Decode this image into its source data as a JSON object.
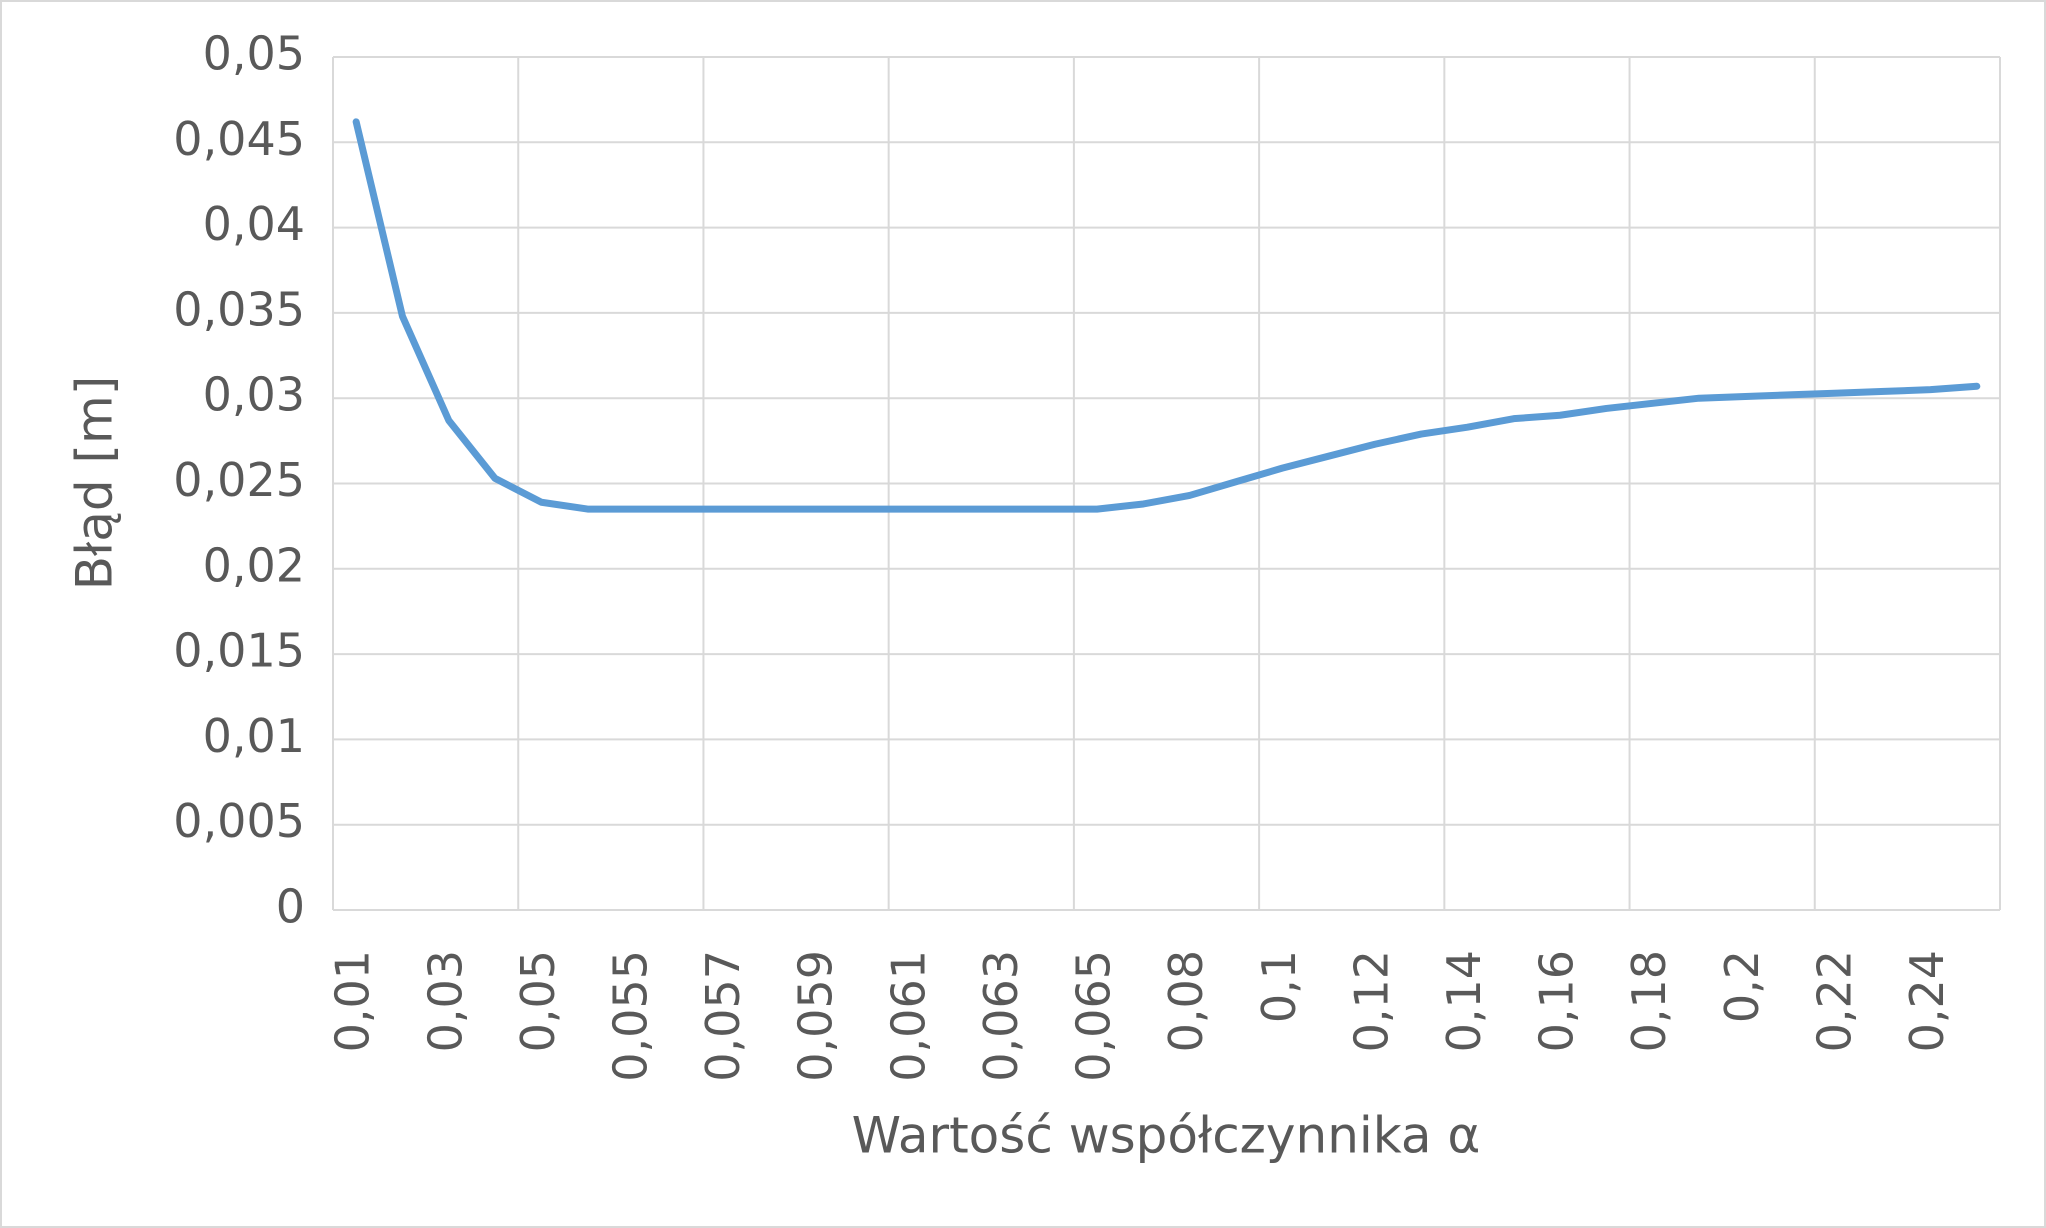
{
  "chart_data": {
    "type": "line",
    "x_label": "Wartość współczynnika α",
    "y_label": "Błąd [m]",
    "categories": [
      "0,01",
      null,
      "0,03",
      null,
      "0,05",
      null,
      "0,055",
      null,
      "0,057",
      null,
      "0,059",
      null,
      "0,061",
      null,
      "0,063",
      null,
      "0,065",
      null,
      "0,08",
      null,
      "0,1",
      null,
      "0,12",
      null,
      "0,14",
      null,
      "0,16",
      null,
      "0,18",
      null,
      "0,2",
      null,
      "0,22",
      null,
      "0,24",
      null
    ],
    "values": [
      0.0462,
      0.0348,
      0.0287,
      0.0253,
      0.0239,
      0.0235,
      0.0235,
      0.0235,
      0.0235,
      0.0235,
      0.0235,
      0.0235,
      0.0235,
      0.0235,
      0.0235,
      0.0235,
      0.0235,
      0.0238,
      0.0243,
      0.0251,
      0.0259,
      0.0266,
      0.0273,
      0.0279,
      0.0283,
      0.0288,
      0.029,
      0.0294,
      0.0297,
      0.03,
      0.0301,
      0.0302,
      0.0303,
      0.0304,
      0.0305,
      0.0307
    ],
    "color": "#5b9bd5",
    "ylim": [
      0,
      0.05
    ],
    "yticks": [
      0,
      {
        "value": 0.005,
        "label": "0,005"
      },
      {
        "value": 0.01,
        "label": "0,01"
      },
      {
        "value": 0.015,
        "label": "0,015"
      },
      {
        "value": 0.02,
        "label": "0,02"
      },
      {
        "value": 0.025,
        "label": "0,025"
      },
      {
        "value": 0.03,
        "label": "0,03"
      },
      {
        "value": 0.035,
        "label": "0,035"
      },
      {
        "value": 0.04,
        "label": "0,04"
      },
      {
        "value": 0.045,
        "label": "0,045"
      },
      {
        "value": 0.05,
        "label": "0,05"
      }
    ],
    "grid": true
  }
}
